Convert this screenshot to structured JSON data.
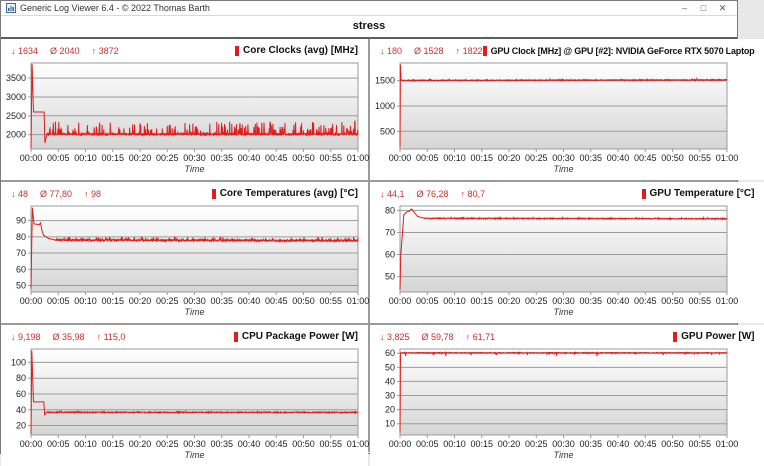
{
  "window": {
    "title": "Generic Log Viewer 6.4 - © 2022 Thomas Barth",
    "minimize": "–",
    "maximize": "□",
    "close": "✕"
  },
  "header": {
    "title": "stress"
  },
  "time_axis": {
    "xlim": [
      0,
      60
    ],
    "xticks": [
      "00:00",
      "00:05",
      "00:10",
      "00:15",
      "00:20",
      "00:25",
      "00:30",
      "00:35",
      "00:40",
      "00:45",
      "00:50",
      "00:55",
      "01:00"
    ],
    "xtick_minutes": [
      0,
      5,
      10,
      15,
      20,
      25,
      30,
      35,
      40,
      45,
      50,
      55,
      60
    ],
    "xlabel": "Time"
  },
  "colors": {
    "line": "#e01d1d",
    "stats": "#cc2f2f",
    "grid": "#9b9b9b",
    "plot_bg_top": "#ffffff",
    "plot_bg_bottom": "#d5d5d5",
    "tick_text": "#222222"
  },
  "chart_data": [
    {
      "type": "line",
      "title": "Core Clocks (avg) [MHz]",
      "stats": {
        "min": "↓ 1634",
        "avg": "Ø 2040",
        "max": "↑ 3872"
      },
      "min": 1634,
      "avg": 2040,
      "max": 3872,
      "ylim": [
        1620,
        3900
      ],
      "yticks": [
        2000,
        2500,
        3000,
        3500
      ],
      "series": [
        [
          0,
          1634
        ],
        [
          0.2,
          3872
        ],
        [
          0.45,
          2600
        ],
        [
          2.4,
          2600
        ],
        [
          2.55,
          1780
        ],
        [
          2.9,
          2010
        ],
        [
          60,
          2010
        ]
      ],
      "noise": {
        "start": 2.9,
        "jitter": 20,
        "spike_prob": 0.25,
        "spike_amp": 330,
        "dir": 1
      }
    },
    {
      "type": "line",
      "title": "GPU Clock [MHz] @ GPU [#2]: NVIDIA GeForce RTX 5070 Laptop",
      "stats": {
        "min": "↓ 180",
        "avg": "Ø 1528",
        "max": "↑ 1822"
      },
      "min": 180,
      "avg": 1528,
      "max": 1822,
      "ylim": [
        150,
        1850
      ],
      "yticks": [
        500,
        1000,
        1500
      ],
      "series": [
        [
          0,
          180
        ],
        [
          0.08,
          1822
        ],
        [
          0.2,
          1505
        ],
        [
          60,
          1515
        ]
      ],
      "noise": {
        "start": 0.25,
        "jitter": 8,
        "spike_prob": 0.05,
        "spike_amp": 28,
        "dir": 1
      }
    },
    {
      "type": "line",
      "title": "Core Temperatures (avg) [°C]",
      "stats": {
        "min": "↓ 48",
        "avg": "Ø 77,80",
        "max": "↑ 98"
      },
      "min": 48,
      "avg": 77.8,
      "max": 98,
      "ylim": [
        46,
        99
      ],
      "yticks": [
        50,
        60,
        70,
        80,
        90
      ],
      "series": [
        [
          0,
          48
        ],
        [
          0.25,
          98
        ],
        [
          0.55,
          88
        ],
        [
          1.5,
          87.5
        ],
        [
          1.75,
          88.5
        ],
        [
          2.0,
          84
        ],
        [
          2.3,
          81
        ],
        [
          3.2,
          79
        ],
        [
          4.5,
          78
        ],
        [
          60,
          77.6
        ]
      ],
      "noise": {
        "start": 4.5,
        "jitter": 0.5,
        "spike_prob": 0.15,
        "spike_amp": 2.2,
        "dir": 1
      }
    },
    {
      "type": "line",
      "title": "GPU Temperature [°C]",
      "stats": {
        "min": "↓ 44,1",
        "avg": "Ø 76,28",
        "max": "↑ 80,7"
      },
      "min": 44.1,
      "avg": 76.28,
      "max": 80.7,
      "ylim": [
        43,
        82
      ],
      "yticks": [
        50,
        60,
        70,
        80
      ],
      "series": [
        [
          0,
          44.1
        ],
        [
          0.15,
          60
        ],
        [
          0.7,
          78
        ],
        [
          1.2,
          79.3
        ],
        [
          1.7,
          79.6
        ],
        [
          2.1,
          80.7
        ],
        [
          2.5,
          79.5
        ],
        [
          3.2,
          77.3
        ],
        [
          4.5,
          76.4
        ],
        [
          60,
          76.2
        ]
      ],
      "noise": {
        "start": 4.5,
        "jitter": 0.2,
        "spike_prob": 0.04,
        "spike_amp": 0.6,
        "dir": 1
      }
    },
    {
      "type": "line",
      "title": "CPU Package Power [W]",
      "stats": {
        "min": "↓ 9,198",
        "avg": "Ø 35,98",
        "max": "↑ 115,0"
      },
      "min": 9.198,
      "avg": 35.98,
      "max": 115.0,
      "ylim": [
        8,
        117
      ],
      "yticks": [
        20,
        40,
        60,
        80,
        100
      ],
      "series": [
        [
          0,
          9.2
        ],
        [
          0.15,
          115
        ],
        [
          0.45,
          50
        ],
        [
          2.35,
          50
        ],
        [
          2.5,
          33.5
        ],
        [
          2.9,
          36.8
        ],
        [
          60,
          36.6
        ]
      ],
      "noise": {
        "start": 2.9,
        "jitter": 0.6,
        "spike_prob": 0.06,
        "spike_amp": 1.5,
        "dir": 1
      }
    },
    {
      "type": "line",
      "title": "GPU Power [W]",
      "stats": {
        "min": "↓ 3,825",
        "avg": "Ø 59,78",
        "max": "↑ 61,71"
      },
      "min": 3.825,
      "avg": 59.78,
      "max": 61.71,
      "ylim": [
        2,
        63
      ],
      "yticks": [
        10,
        20,
        30,
        40,
        50,
        60
      ],
      "series": [
        [
          0,
          3.8
        ],
        [
          0.1,
          60.3
        ],
        [
          60,
          60.3
        ]
      ],
      "noise": {
        "start": 0.15,
        "jitter": 0.25,
        "spike_prob": 0.04,
        "spike_amp": 2.5,
        "dir": -1
      }
    }
  ]
}
